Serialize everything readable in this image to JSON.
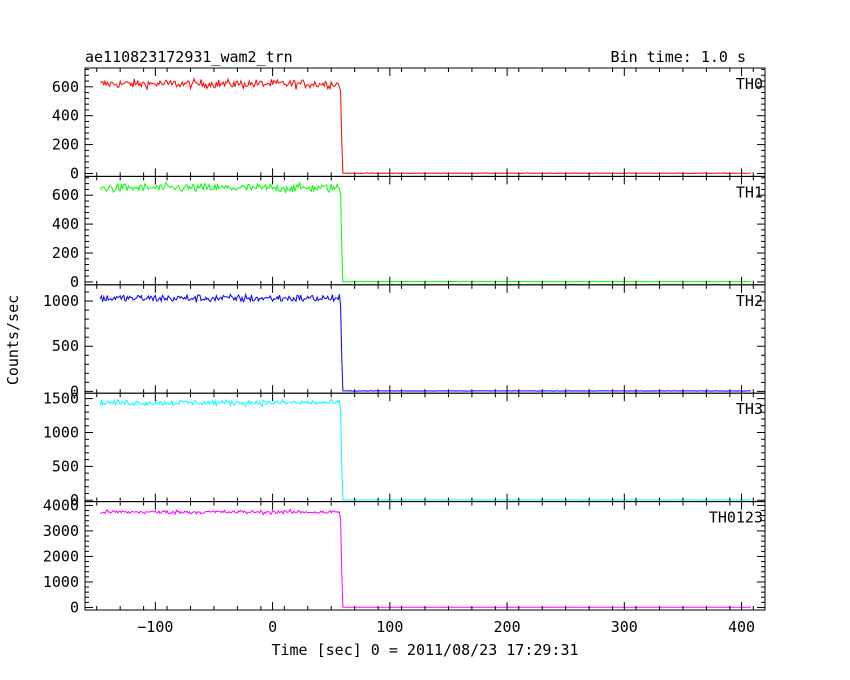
{
  "header": {
    "title": "ae110823172931_wam2_trn",
    "bin_time": "Bin time: 1.0 s"
  },
  "chart_data": {
    "type": "line",
    "title": "ae110823172931_wam2_trn",
    "subtitle": "Bin time: 1.0 s",
    "xlabel": "Time [sec] 0 = 2011/08/23 17:29:31",
    "ylabel": "Counts/sec",
    "xlim": [
      -160,
      420
    ],
    "xticks": [
      -100,
      0,
      100,
      200,
      300,
      400
    ],
    "xtick_labels": [
      "−100",
      "0",
      "100",
      "200",
      "300",
      "400"
    ],
    "step_time": 59,
    "x_start": -147,
    "x_end": 408,
    "grid": false,
    "panels": [
      {
        "name": "TH0",
        "color": "#ff0000",
        "ylim": [
          -20,
          730
        ],
        "yticks": [
          0,
          200,
          400,
          600
        ],
        "ytick_labels": [
          "0",
          "200",
          "400",
          "600"
        ],
        "level_before": 620,
        "noise_before": 22,
        "level_after": 2
      },
      {
        "name": "TH1",
        "color": "#00ff00",
        "ylim": [
          -20,
          730
        ],
        "yticks": [
          0,
          200,
          400,
          600
        ],
        "ytick_labels": [
          "0",
          "200",
          "400",
          "600"
        ],
        "level_before": 650,
        "noise_before": 22,
        "level_after": 2
      },
      {
        "name": "TH2",
        "color": "#0000ff",
        "ylim": [
          -20,
          1180
        ],
        "yticks": [
          0,
          500,
          1000
        ],
        "ytick_labels": [
          "0",
          "500",
          "1000"
        ],
        "level_before": 1030,
        "noise_before": 32,
        "level_after": 5
      },
      {
        "name": "TH3",
        "color": "#00ffff",
        "ylim": [
          -20,
          1580
        ],
        "yticks": [
          0,
          500,
          1000,
          1500
        ],
        "ytick_labels": [
          "0",
          "500",
          "1000",
          "1500"
        ],
        "level_before": 1440,
        "noise_before": 30,
        "level_after": 4
      },
      {
        "name": "TH0123",
        "color": "#ff00ff",
        "ylim": [
          -100,
          4150
        ],
        "yticks": [
          0,
          1000,
          2000,
          3000,
          4000
        ],
        "ytick_labels": [
          "0",
          "1000",
          "2000",
          "3000",
          "4000"
        ],
        "level_before": 3740,
        "noise_before": 55,
        "level_after": 10
      }
    ]
  }
}
